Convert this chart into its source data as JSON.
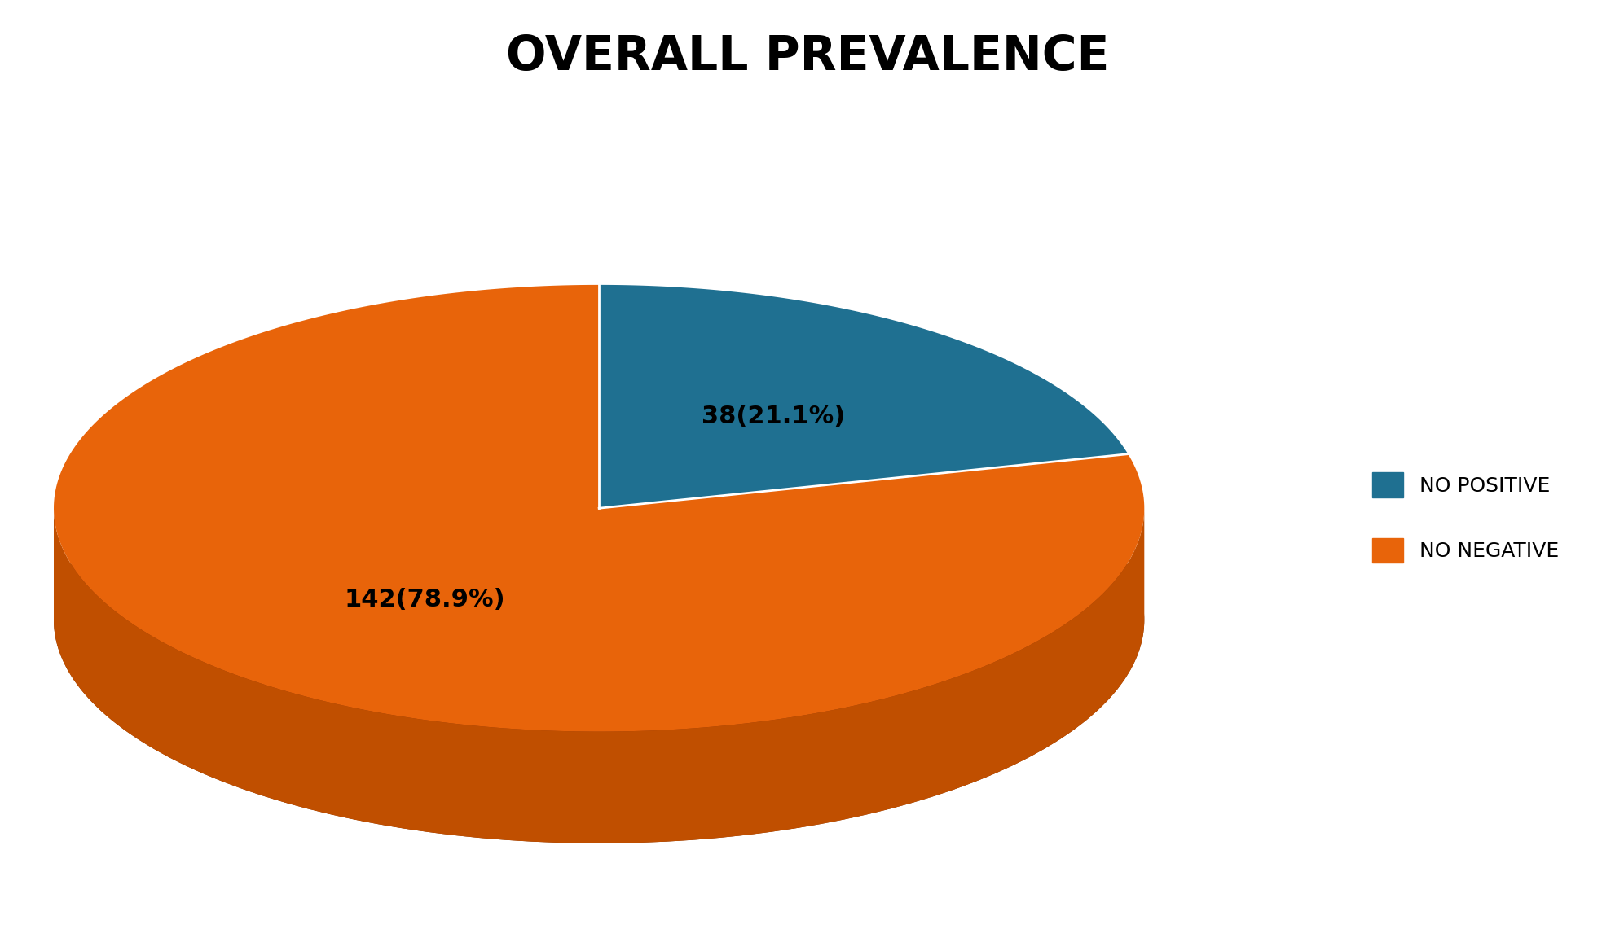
{
  "title": "OVERALL PREVALENCE",
  "title_fontsize": 42,
  "title_fontweight": "bold",
  "slices": [
    {
      "label": "NO POSITIVE",
      "value": 38,
      "pct": 21.1,
      "color": "#1f7091",
      "text": "38(21.1%)"
    },
    {
      "label": "NO NEGATIVE",
      "value": 142,
      "pct": 78.9,
      "color": "#E8640A",
      "text": "142(78.9%)"
    }
  ],
  "legend_labels": [
    "NO POSITIVE",
    "NO NEGATIVE"
  ],
  "legend_colors": [
    "#1f7091",
    "#E8640A"
  ],
  "background_color": "#ffffff",
  "depth_color": "#7B2D00",
  "depth_color_orange": "#C04F00",
  "label_fontsize": 22
}
